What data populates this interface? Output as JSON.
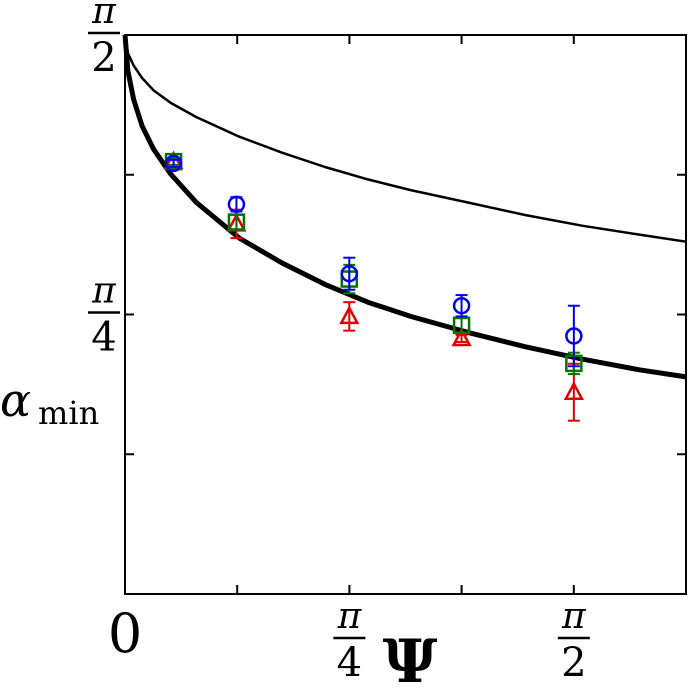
{
  "chart_data": {
    "type": "scatter",
    "xlabel": "Ψ",
    "ylabel": "α",
    "ylabel_sub": "min",
    "xlim": [
      0,
      1.9635
    ],
    "ylim": [
      0,
      1.5708
    ],
    "x_ticks": [
      {
        "value": 0,
        "label": "0"
      },
      {
        "value": 0.3927,
        "label": ""
      },
      {
        "value": 0.7854,
        "label": "π/4",
        "num": "π",
        "den": "4"
      },
      {
        "value": 1.1781,
        "label": ""
      },
      {
        "value": 1.5708,
        "label": "π/2",
        "num": "π",
        "den": "2"
      }
    ],
    "y_ticks": [
      {
        "value": 0.3927,
        "label": ""
      },
      {
        "value": 0.7854,
        "label": "π/4",
        "num": "π",
        "den": "4"
      },
      {
        "value": 1.1781,
        "label": ""
      },
      {
        "value": 1.5708,
        "label": "π/2",
        "num": "π",
        "den": "2"
      }
    ],
    "lines": [
      {
        "style": "thick",
        "color": "#000000",
        "x": [
          0,
          0.01,
          0.03,
          0.06,
          0.1,
          0.16,
          0.25,
          0.4,
          0.55,
          0.7,
          0.85,
          1.0,
          1.2,
          1.4,
          1.6,
          1.8,
          1.9635
        ],
        "y": [
          1.5708,
          1.47,
          1.39,
          1.315,
          1.25,
          1.18,
          1.1,
          1.0,
          0.93,
          0.87,
          0.82,
          0.78,
          0.735,
          0.695,
          0.66,
          0.63,
          0.61
        ]
      },
      {
        "style": "thin",
        "color": "#000000",
        "x": [
          0,
          0.01,
          0.03,
          0.06,
          0.1,
          0.16,
          0.25,
          0.4,
          0.55,
          0.7,
          0.85,
          1.0,
          1.2,
          1.4,
          1.6,
          1.8,
          1.9635
        ],
        "y": [
          1.5708,
          1.52,
          1.485,
          1.45,
          1.415,
          1.38,
          1.34,
          1.285,
          1.24,
          1.2,
          1.165,
          1.135,
          1.1,
          1.065,
          1.035,
          1.01,
          0.99
        ]
      }
    ],
    "series": [
      {
        "marker": "triangle",
        "color": "#e00000",
        "points": [
          {
            "x": 0.17,
            "y": 1.215,
            "err": 0.01
          },
          {
            "x": 0.39,
            "y": 1.04,
            "err": 0.04
          },
          {
            "x": 0.785,
            "y": 0.78,
            "err": 0.04
          },
          {
            "x": 1.178,
            "y": 0.718,
            "err": 0.01
          },
          {
            "x": 1.571,
            "y": 0.567,
            "err": 0.08
          }
        ]
      },
      {
        "marker": "square",
        "color": "#007700",
        "points": [
          {
            "x": 0.17,
            "y": 1.215,
            "err": 0.01
          },
          {
            "x": 0.39,
            "y": 1.045,
            "err": 0.02
          },
          {
            "x": 0.785,
            "y": 0.885,
            "err": 0.04
          },
          {
            "x": 1.178,
            "y": 0.755,
            "err": 0.02
          },
          {
            "x": 1.571,
            "y": 0.648,
            "err": 0.03
          }
        ]
      },
      {
        "marker": "circle",
        "color": "#0000ee",
        "points": [
          {
            "x": 0.17,
            "y": 1.21,
            "err": 0.01
          },
          {
            "x": 0.39,
            "y": 1.095,
            "err": 0.02
          },
          {
            "x": 0.785,
            "y": 0.9,
            "err": 0.045
          },
          {
            "x": 1.178,
            "y": 0.81,
            "err": 0.03
          },
          {
            "x": 1.571,
            "y": 0.725,
            "err": 0.085
          }
        ]
      }
    ],
    "grid": false,
    "legend": "none"
  }
}
